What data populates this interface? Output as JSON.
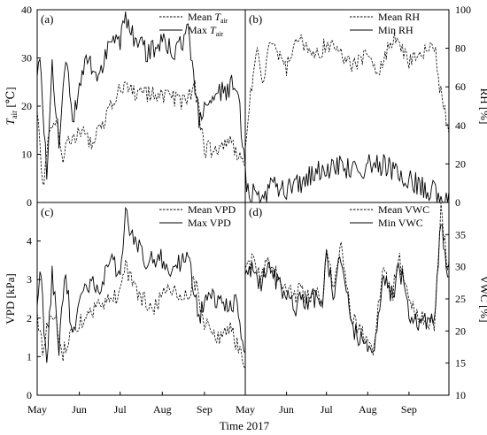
{
  "figure": {
    "xlabel": "Time 2017",
    "months": [
      "May",
      "Jun",
      "Jul",
      "Aug",
      "Sep"
    ],
    "x_start": "2017-05-01",
    "x_end": "2017-10-01"
  },
  "chart_data": [
    {
      "type": "line",
      "panel": "(a)",
      "y_axis_side": "left",
      "ylabel": "T_air [℃]",
      "ylabel_main": "T",
      "ylabel_sub": "air",
      "ylabel_unit": " [℃]",
      "ylim": [
        0,
        40
      ],
      "yticks": [
        "0",
        "10",
        "20",
        "30",
        "40"
      ],
      "series": [
        {
          "name": "Mean T_air",
          "legend_main": "Mean ",
          "legend_var": "T",
          "legend_sub": "air",
          "style": "dashed",
          "x": [
            "2017-05-01",
            "2017-05-05",
            "2017-05-10",
            "2017-05-15",
            "2017-05-20",
            "2017-05-25",
            "2017-06-01",
            "2017-06-10",
            "2017-06-20",
            "2017-07-01",
            "2017-07-05",
            "2017-07-15",
            "2017-07-25",
            "2017-08-05",
            "2017-08-15",
            "2017-08-25",
            "2017-09-01",
            "2017-09-10",
            "2017-09-20",
            "2017-09-30"
          ],
          "y": [
            20,
            3,
            14,
            16,
            9,
            13,
            15,
            12,
            17,
            24,
            25,
            22,
            23,
            22,
            21,
            24,
            11,
            11,
            13,
            8
          ]
        },
        {
          "name": "Max T_air",
          "legend_main": "Max  ",
          "legend_var": "T",
          "legend_sub": "air",
          "style": "solid",
          "x": [
            "2017-05-01",
            "2017-05-03",
            "2017-05-08",
            "2017-05-12",
            "2017-05-17",
            "2017-05-22",
            "2017-05-27",
            "2017-06-05",
            "2017-06-15",
            "2017-06-25",
            "2017-07-01",
            "2017-07-05",
            "2017-07-10",
            "2017-07-20",
            "2017-08-01",
            "2017-08-10",
            "2017-08-20",
            "2017-08-28",
            "2017-09-05",
            "2017-09-15",
            "2017-09-25",
            "2017-09-30"
          ],
          "y": [
            28,
            32,
            5,
            28,
            12,
            30,
            17,
            29,
            27,
            34,
            34,
            39,
            35,
            31,
            33,
            32,
            35,
            17,
            22,
            23,
            25,
            9
          ]
        }
      ]
    },
    {
      "type": "line",
      "panel": "(b)",
      "y_axis_side": "right",
      "ylabel": "RH [%]",
      "ylim": [
        0,
        100
      ],
      "yticks": [
        "0",
        "20",
        "40",
        "60",
        "80",
        "100"
      ],
      "series": [
        {
          "name": "Mean RH",
          "style": "dashed",
          "x": [
            "2017-05-01",
            "2017-05-05",
            "2017-05-10",
            "2017-05-15",
            "2017-05-20",
            "2017-06-01",
            "2017-06-10",
            "2017-06-20",
            "2017-07-01",
            "2017-07-10",
            "2017-07-20",
            "2017-08-01",
            "2017-08-10",
            "2017-08-20",
            "2017-09-01",
            "2017-09-10",
            "2017-09-20",
            "2017-09-25",
            "2017-09-30"
          ],
          "y": [
            30,
            55,
            78,
            62,
            84,
            70,
            88,
            74,
            82,
            78,
            72,
            76,
            68,
            86,
            72,
            76,
            82,
            56,
            40
          ]
        },
        {
          "name": "Min RH",
          "style": "solid",
          "x": [
            "2017-05-01",
            "2017-05-05",
            "2017-05-10",
            "2017-05-15",
            "2017-05-20",
            "2017-06-01",
            "2017-06-10",
            "2017-06-20",
            "2017-07-01",
            "2017-07-10",
            "2017-07-20",
            "2017-08-01",
            "2017-08-10",
            "2017-08-20",
            "2017-09-01",
            "2017-09-10",
            "2017-09-20",
            "2017-09-30"
          ],
          "y": [
            14,
            3,
            5,
            3,
            8,
            6,
            10,
            14,
            18,
            19,
            17,
            19,
            20,
            17,
            12,
            8,
            6,
            0
          ]
        }
      ]
    },
    {
      "type": "line",
      "panel": "(c)",
      "y_axis_side": "left",
      "ylabel": "VPD [kPa]",
      "ylim": [
        0,
        5
      ],
      "yticks": [
        "0",
        "1",
        "2",
        "3",
        "4"
      ],
      "series": [
        {
          "name": "Mean VPD",
          "style": "dashed",
          "x": [
            "2017-05-01",
            "2017-05-05",
            "2017-05-10",
            "2017-05-15",
            "2017-05-20",
            "2017-06-01",
            "2017-06-10",
            "2017-06-20",
            "2017-07-01",
            "2017-07-05",
            "2017-07-15",
            "2017-07-25",
            "2017-08-05",
            "2017-08-15",
            "2017-08-25",
            "2017-09-01",
            "2017-09-10",
            "2017-09-20",
            "2017-09-30"
          ],
          "y": [
            2.0,
            1.2,
            2.1,
            1.9,
            1.1,
            1.9,
            2.2,
            2.4,
            2.6,
            3.3,
            2.6,
            2.2,
            2.8,
            2.5,
            2.9,
            1.9,
            1.4,
            1.7,
            0.9
          ]
        },
        {
          "name": "Max VPD",
          "style": "solid",
          "x": [
            "2017-05-01",
            "2017-05-03",
            "2017-05-08",
            "2017-05-12",
            "2017-05-17",
            "2017-05-22",
            "2017-05-27",
            "2017-06-05",
            "2017-06-15",
            "2017-06-25",
            "2017-07-01",
            "2017-07-05",
            "2017-07-10",
            "2017-07-20",
            "2017-08-01",
            "2017-08-10",
            "2017-08-20",
            "2017-08-28",
            "2017-09-05",
            "2017-09-15",
            "2017-09-25",
            "2017-09-30"
          ],
          "y": [
            2.4,
            3.4,
            0.8,
            3.2,
            1.2,
            3.2,
            1.5,
            3.0,
            2.8,
            3.4,
            3.2,
            4.7,
            4.1,
            3.5,
            3.5,
            3.3,
            3.6,
            2.0,
            2.6,
            2.2,
            2.4,
            1.0
          ]
        }
      ]
    },
    {
      "type": "line",
      "panel": "(d)",
      "y_axis_side": "right",
      "ylabel": "VWC [%]",
      "ylim": [
        10,
        40
      ],
      "yticks": [
        "10",
        "15",
        "20",
        "25",
        "30",
        "35"
      ],
      "series": [
        {
          "name": "Mean VWC",
          "style": "dashed",
          "x": [
            "2017-05-01",
            "2017-05-07",
            "2017-05-12",
            "2017-05-18",
            "2017-05-22",
            "2017-05-27",
            "2017-06-01",
            "2017-06-08",
            "2017-06-12",
            "2017-06-15",
            "2017-06-22",
            "2017-06-28",
            "2017-07-01",
            "2017-07-06",
            "2017-07-12",
            "2017-07-20",
            "2017-07-30",
            "2017-08-05",
            "2017-08-12",
            "2017-08-20",
            "2017-08-24",
            "2017-09-01",
            "2017-09-10",
            "2017-09-20",
            "2017-09-25",
            "2017-09-30"
          ],
          "y": [
            29,
            31,
            28,
            31,
            30,
            28,
            27,
            25,
            27,
            25,
            26,
            24,
            34,
            26,
            33,
            22,
            19,
            17,
            29,
            26,
            32,
            24,
            22,
            21,
            39,
            30
          ]
        },
        {
          "name": "Min VWC",
          "style": "solid",
          "x": [
            "2017-05-01",
            "2017-05-07",
            "2017-05-12",
            "2017-05-18",
            "2017-05-22",
            "2017-05-27",
            "2017-06-01",
            "2017-06-08",
            "2017-06-12",
            "2017-06-15",
            "2017-06-22",
            "2017-06-28",
            "2017-07-01",
            "2017-07-06",
            "2017-07-12",
            "2017-07-20",
            "2017-07-30",
            "2017-08-05",
            "2017-08-12",
            "2017-08-20",
            "2017-08-24",
            "2017-09-01",
            "2017-09-10",
            "2017-09-20",
            "2017-09-25",
            "2017-09-30"
          ],
          "y": [
            28,
            30,
            27,
            30,
            29,
            27,
            26,
            24,
            26,
            24,
            25,
            23,
            33,
            25,
            32,
            21,
            18,
            16,
            28,
            25,
            31,
            23,
            21,
            21,
            38,
            29
          ]
        }
      ]
    }
  ]
}
